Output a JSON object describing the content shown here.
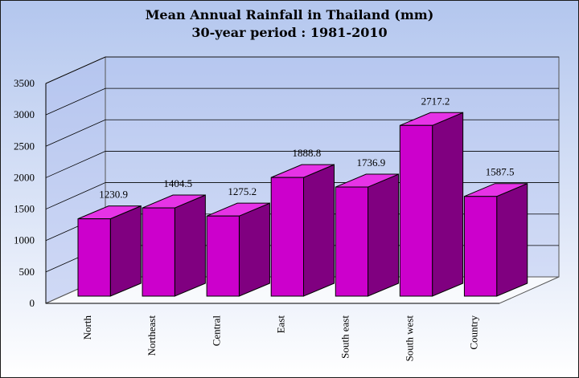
{
  "chart_data": {
    "type": "bar",
    "title": "Mean Annual Rainfall in Thailand (mm)",
    "subtitle": "30-year period : 1981-2010",
    "categories": [
      "North",
      "Northeast",
      "Central",
      "East",
      "South east",
      "South west",
      "Country"
    ],
    "values": [
      1230.9,
      1404.5,
      1275.2,
      1888.8,
      1736.9,
      2717.2,
      1587.5
    ],
    "value_labels": [
      "1230.9",
      "1404.5",
      "1275.2",
      "1888.8",
      "1736.9",
      "2717.2",
      "1587.5"
    ],
    "yticks": [
      "0",
      "500",
      "1000",
      "1500",
      "2000",
      "2500",
      "3000",
      "3500"
    ],
    "ylim": [
      0,
      3500
    ],
    "xlabel": "",
    "ylabel": "",
    "grid": true,
    "style": "3d",
    "colors": {
      "bar_front": "#cc00cc",
      "bar_top": "#e633e6",
      "bar_side": "#800080",
      "plot_wall": "#aabbee",
      "gridline": "#000000"
    }
  }
}
